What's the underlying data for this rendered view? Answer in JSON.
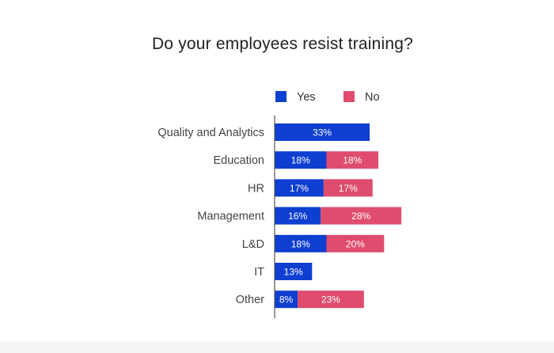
{
  "chart_data": {
    "type": "bar",
    "orientation": "horizontal",
    "stacked": true,
    "title": "Do your employees resist training?",
    "categories": [
      "Quality and Analytics",
      "Education",
      "HR",
      "Management",
      "L&D",
      "IT",
      "Other"
    ],
    "series": [
      {
        "name": "Yes",
        "color": "#0e3fd0",
        "values": [
          33,
          18,
          17,
          16,
          18,
          13,
          8
        ]
      },
      {
        "name": "No",
        "color": "#df4c6e",
        "values": [
          0,
          18,
          17,
          28,
          20,
          0,
          23
        ]
      }
    ],
    "value_suffix": "%",
    "xlim": [
      0,
      100
    ],
    "grid": false,
    "legend": "top-center"
  }
}
